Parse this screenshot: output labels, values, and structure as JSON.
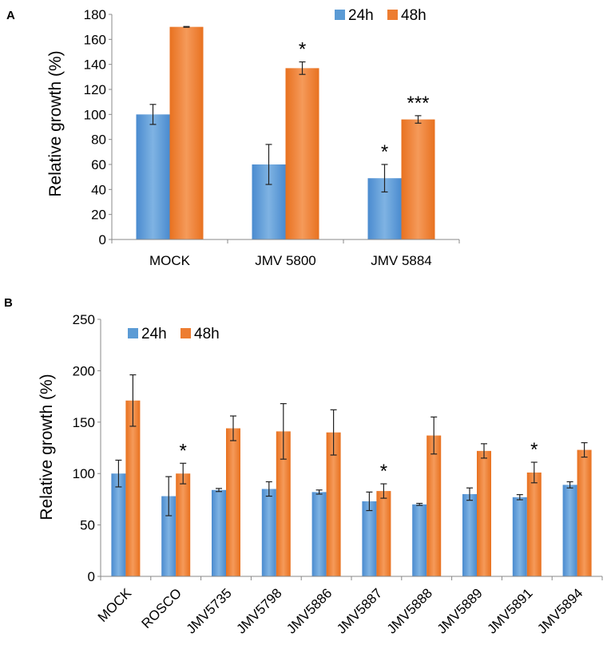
{
  "chart_data": [
    {
      "panel": "A",
      "type": "bar",
      "ylabel": "Relative growth (%)",
      "xlabel": "",
      "ylim": [
        0,
        180
      ],
      "yticks": [
        0,
        20,
        40,
        60,
        80,
        100,
        120,
        140,
        160,
        180
      ],
      "categories": [
        "MOCK",
        "JMV 5800",
        "JMV 5884"
      ],
      "series": [
        {
          "name": "24h",
          "color": "#5b9bd5",
          "values": [
            100,
            60,
            49
          ],
          "errors": [
            8,
            16,
            11
          ]
        },
        {
          "name": "48h",
          "color": "#ed7d31",
          "values": [
            170,
            137,
            96
          ],
          "errors": [
            0.3,
            5,
            3
          ]
        }
      ],
      "annotations": [
        {
          "category": "JMV 5800",
          "series": "48h",
          "text": "*"
        },
        {
          "category": "JMV 5884",
          "series": "24h",
          "text": "*"
        },
        {
          "category": "JMV 5884",
          "series": "48h",
          "text": "***"
        }
      ],
      "legend": "top-right"
    },
    {
      "panel": "B",
      "type": "bar",
      "ylabel": "Relative growth (%)",
      "xlabel": "",
      "ylim": [
        0,
        250
      ],
      "yticks": [
        0,
        50,
        100,
        150,
        200,
        250
      ],
      "categories": [
        "MOCK",
        "ROSCO",
        "JMV5735",
        "JMV5798",
        "JMV5886",
        "JMV5887",
        "JMV5888",
        "JMV5889",
        "JMV5891",
        "JMV5894"
      ],
      "series": [
        {
          "name": "24h",
          "color": "#5b9bd5",
          "values": [
            100,
            78,
            84,
            85,
            82,
            73,
            70,
            80,
            77,
            89
          ],
          "errors": [
            13,
            19,
            1.5,
            7,
            2,
            9,
            1,
            6,
            2.5,
            3
          ]
        },
        {
          "name": "48h",
          "color": "#ed7d31",
          "values": [
            171,
            100,
            144,
            141,
            140,
            83,
            137,
            122,
            101,
            123
          ],
          "errors": [
            25,
            10,
            12,
            27,
            22,
            7,
            18,
            7,
            10,
            7
          ]
        }
      ],
      "annotations": [
        {
          "category": "ROSCO",
          "series": "48h",
          "text": "*"
        },
        {
          "category": "JMV5887",
          "series": "48h",
          "text": "*"
        },
        {
          "category": "JMV5891",
          "series": "48h",
          "text": "*"
        }
      ],
      "legend": "top-left"
    }
  ]
}
